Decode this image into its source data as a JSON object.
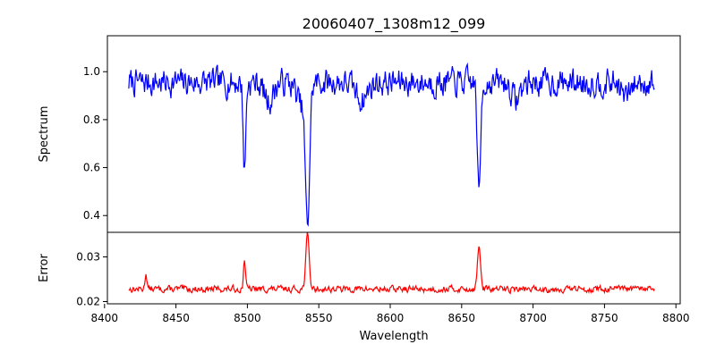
{
  "chart_data": {
    "type": "line",
    "title": "20060407_1308m12_099",
    "xlabel": "Wavelength",
    "xlim": [
      8402,
      8803
    ],
    "x_ticks": [
      8400,
      8450,
      8500,
      8550,
      8600,
      8650,
      8700,
      8750,
      8800
    ],
    "x_tick_labels": [
      "8400",
      "8450",
      "8500",
      "8550",
      "8600",
      "8650",
      "8700",
      "8750",
      "8800"
    ],
    "x_start": 8417,
    "x_end": 8785,
    "panels": [
      {
        "name": "spectrum",
        "ylabel": "Spectrum",
        "ylim": [
          0.33,
          1.15
        ],
        "y_ticks": [
          0.4,
          0.6,
          0.8,
          1.0
        ],
        "y_tick_labels": [
          "0.4",
          "0.6",
          "0.8",
          "1.0"
        ],
        "series": [
          {
            "name": "Spectrum",
            "color": "#0000ff",
            "baseline": 0.955,
            "noise": 0.055,
            "seed": 7,
            "features": [
              {
                "center": 8498.0,
                "depth": 0.37,
                "width": 0.9
              },
              {
                "center": 8542.1,
                "depth": 0.55,
                "width": 1.4
              },
              {
                "center": 8538.5,
                "depth": 0.1,
                "width": 3.5
              },
              {
                "center": 8662.1,
                "depth": 0.48,
                "width": 1.1
              },
              {
                "center": 8515.0,
                "depth": 0.08,
                "width": 3.0
              },
              {
                "center": 8580.0,
                "depth": 0.07,
                "width": 4.0
              },
              {
                "center": 8688.0,
                "depth": 0.07,
                "width": 3.0
              },
              {
                "center": 8765.0,
                "depth": 0.06,
                "width": 3.0
              }
            ]
          }
        ]
      },
      {
        "name": "error",
        "ylabel": "Error",
        "ylim": [
          0.0195,
          0.0355
        ],
        "y_ticks": [
          0.02,
          0.03
        ],
        "y_tick_labels": [
          "0.02",
          "0.03"
        ],
        "series": [
          {
            "name": "Error",
            "color": "#ff0000",
            "baseline": 0.0228,
            "noise": 0.0007,
            "seed": 13,
            "features": [
              {
                "center": 8498.0,
                "depth": 0.0068,
                "width": 0.7
              },
              {
                "center": 8542.1,
                "depth": 0.012,
                "width": 1.2
              },
              {
                "center": 8662.1,
                "depth": 0.01,
                "width": 1.0
              },
              {
                "center": 8429.0,
                "depth": 0.0035,
                "width": 0.7
              }
            ]
          }
        ]
      }
    ]
  }
}
